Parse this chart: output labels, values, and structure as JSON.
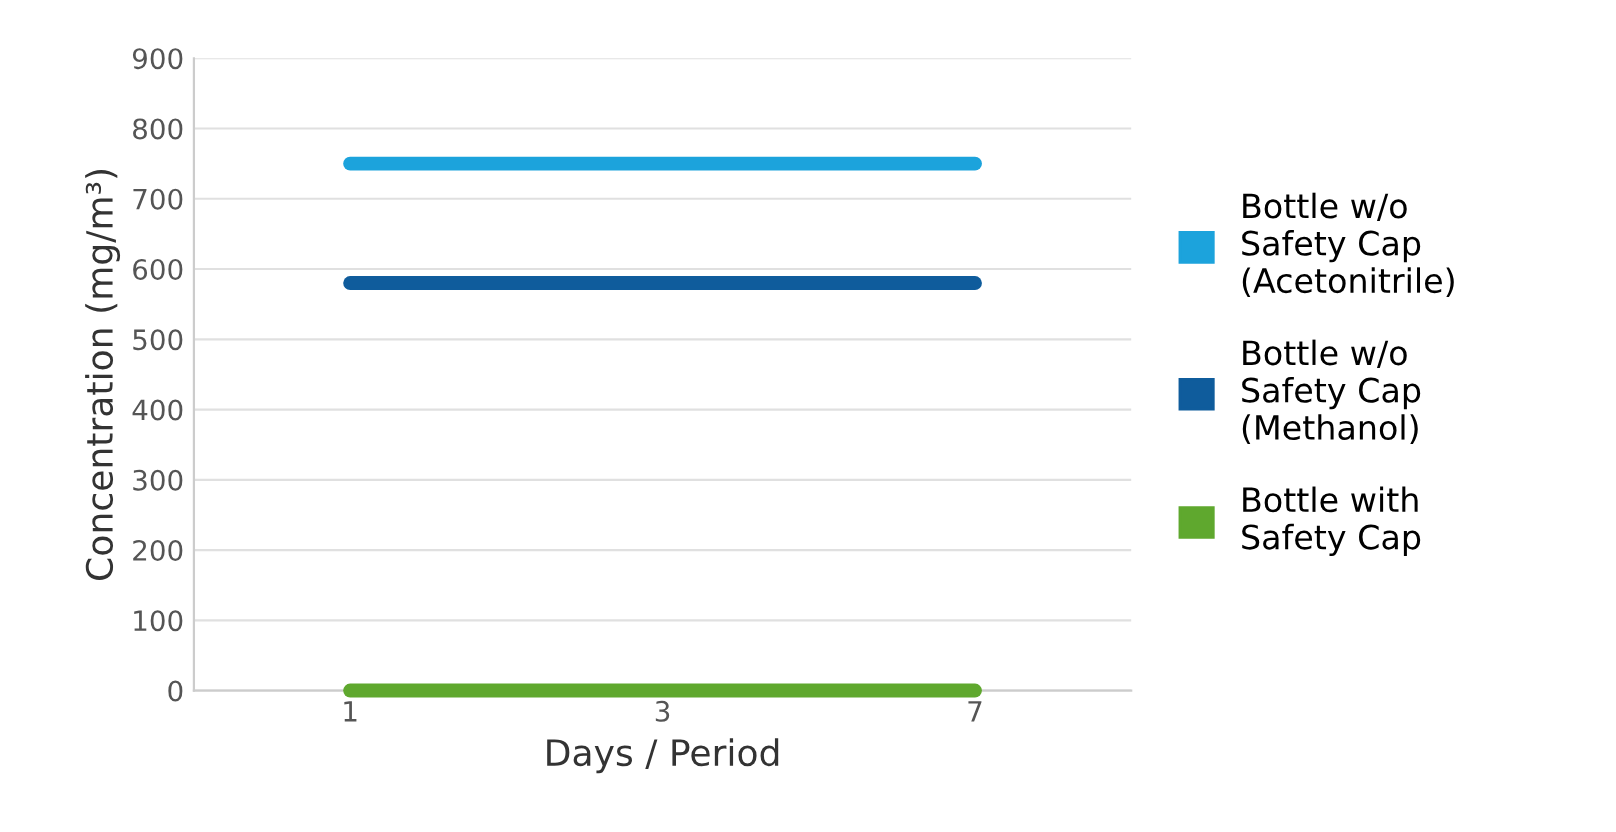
{
  "chart_data": {
    "type": "line",
    "xlabel": "Days / Period",
    "ylabel": "Concentration (mg/m³)",
    "categories": [
      "1",
      "3",
      "7"
    ],
    "series": [
      {
        "name": "Bottle w/o Safety Cap (Acetonitrile)",
        "color": "#1ca3dc",
        "values": [
          750,
          750,
          750
        ]
      },
      {
        "name": "Bottle w/o Safety Cap (Methanol)",
        "color": "#0f5c9c",
        "values": [
          580,
          580,
          580
        ]
      },
      {
        "name": "Bottle with Safety Cap",
        "color": "#5fa82e",
        "values": [
          0,
          0,
          0
        ]
      }
    ],
    "ylim": [
      0,
      900
    ],
    "yticks": [
      0,
      100,
      200,
      300,
      400,
      500,
      600,
      700,
      800,
      900
    ],
    "grid": "y",
    "legend": "right",
    "marker": "none",
    "line_style": "solid"
  }
}
